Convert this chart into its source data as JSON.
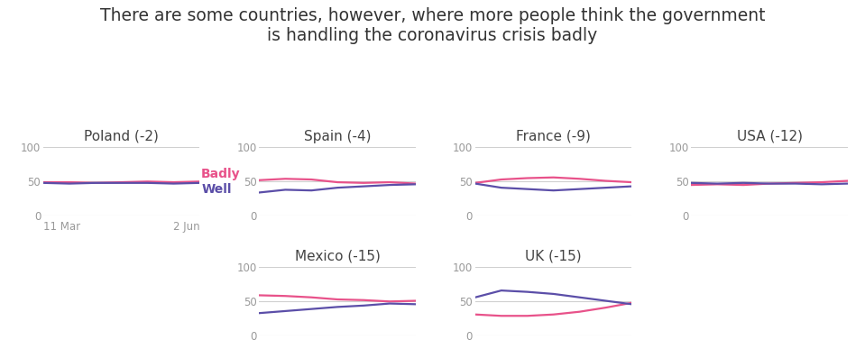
{
  "title": "There are some countries, however, where more people think the government\nis handling the coronavirus crisis badly",
  "title_fontsize": 13.5,
  "badly_color": "#e8528a",
  "well_color": "#5b4ea8",
  "bg_color": "#ffffff",
  "grid_color": "#d0d0d0",
  "countries": [
    {
      "name": "Poland (-2)",
      "row": 0,
      "col": 0,
      "badly": [
        48,
        48,
        47,
        48,
        49,
        48,
        49
      ],
      "well": [
        47,
        46,
        47,
        47,
        47,
        46,
        47
      ],
      "show_legend": true
    },
    {
      "name": "Spain (-4)",
      "row": 0,
      "col": 1,
      "badly": [
        51,
        53,
        52,
        48,
        47,
        48,
        46
      ],
      "well": [
        33,
        37,
        36,
        40,
        42,
        44,
        45
      ],
      "show_legend": false
    },
    {
      "name": "France (-9)",
      "row": 0,
      "col": 2,
      "badly": [
        47,
        52,
        54,
        55,
        53,
        50,
        48
      ],
      "well": [
        46,
        40,
        38,
        36,
        38,
        40,
        42
      ],
      "show_legend": false
    },
    {
      "name": "USA (-12)",
      "row": 0,
      "col": 3,
      "badly": [
        44,
        45,
        44,
        46,
        47,
        48,
        50
      ],
      "well": [
        47,
        46,
        47,
        46,
        46,
        45,
        46
      ],
      "show_legend": false
    },
    {
      "name": "Mexico (-15)",
      "row": 1,
      "col": 1,
      "badly": [
        58,
        57,
        55,
        52,
        51,
        49,
        50
      ],
      "well": [
        32,
        35,
        38,
        41,
        43,
        46,
        45
      ],
      "show_legend": false
    },
    {
      "name": "UK (-15)",
      "row": 1,
      "col": 2,
      "badly": [
        30,
        28,
        28,
        30,
        34,
        40,
        47
      ],
      "well": [
        55,
        65,
        63,
        60,
        55,
        50,
        45
      ],
      "show_legend": false
    }
  ],
  "xlim": [
    0,
    6
  ],
  "ylim": [
    0,
    100
  ],
  "yticks": [
    0,
    50,
    100
  ],
  "xlabel_left": "11 Mar",
  "xlabel_right": "2 Jun",
  "legend_badly": "Badly",
  "legend_well": "Well",
  "tick_fontsize": 8.5,
  "label_fontsize": 8.5,
  "country_fontsize": 11
}
